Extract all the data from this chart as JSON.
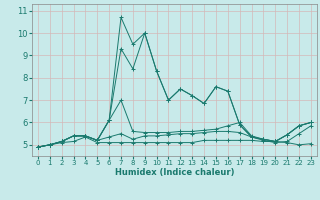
{
  "xlabel": "Humidex (Indice chaleur)",
  "background_color": "#c8eaea",
  "grid_color": "#d4b8b8",
  "line_color": "#1a7a6e",
  "xlim": [
    -0.5,
    23.5
  ],
  "ylim": [
    4.5,
    11.3
  ],
  "yticks": [
    5,
    6,
    7,
    8,
    9,
    10,
    11
  ],
  "xticks": [
    0,
    1,
    2,
    3,
    4,
    5,
    6,
    7,
    8,
    9,
    10,
    11,
    12,
    13,
    14,
    15,
    16,
    17,
    18,
    19,
    20,
    21,
    22,
    23
  ],
  "series": [
    [
      4.9,
      5.0,
      5.1,
      5.15,
      5.35,
      5.1,
      5.1,
      5.1,
      5.1,
      5.1,
      5.1,
      5.1,
      5.1,
      5.1,
      5.2,
      5.2,
      5.2,
      5.2,
      5.2,
      5.15,
      5.15,
      5.1,
      5.0,
      5.05
    ],
    [
      4.9,
      5.0,
      5.15,
      5.4,
      5.4,
      5.2,
      5.35,
      5.5,
      5.25,
      5.4,
      5.4,
      5.45,
      5.5,
      5.5,
      5.55,
      5.6,
      5.6,
      5.55,
      5.35,
      5.2,
      5.1,
      5.15,
      5.5,
      5.85
    ],
    [
      4.9,
      5.0,
      5.15,
      5.4,
      5.4,
      5.2,
      6.1,
      7.0,
      5.6,
      5.55,
      5.55,
      5.55,
      5.6,
      5.6,
      5.65,
      5.7,
      5.85,
      6.0,
      5.4,
      5.25,
      5.15,
      5.45,
      5.85,
      6.0
    ],
    [
      4.9,
      5.0,
      5.15,
      5.4,
      5.4,
      5.2,
      6.1,
      9.3,
      8.4,
      10.0,
      8.3,
      7.0,
      7.5,
      7.2,
      6.85,
      7.6,
      7.4,
      5.9,
      5.35,
      5.25,
      5.15,
      5.45,
      5.85,
      6.0
    ],
    [
      4.9,
      5.0,
      5.15,
      5.4,
      5.4,
      5.2,
      6.1,
      10.7,
      9.5,
      10.0,
      8.3,
      7.0,
      7.5,
      7.2,
      6.85,
      7.6,
      7.4,
      5.9,
      5.35,
      5.25,
      5.15,
      5.45,
      5.85,
      6.0
    ]
  ]
}
